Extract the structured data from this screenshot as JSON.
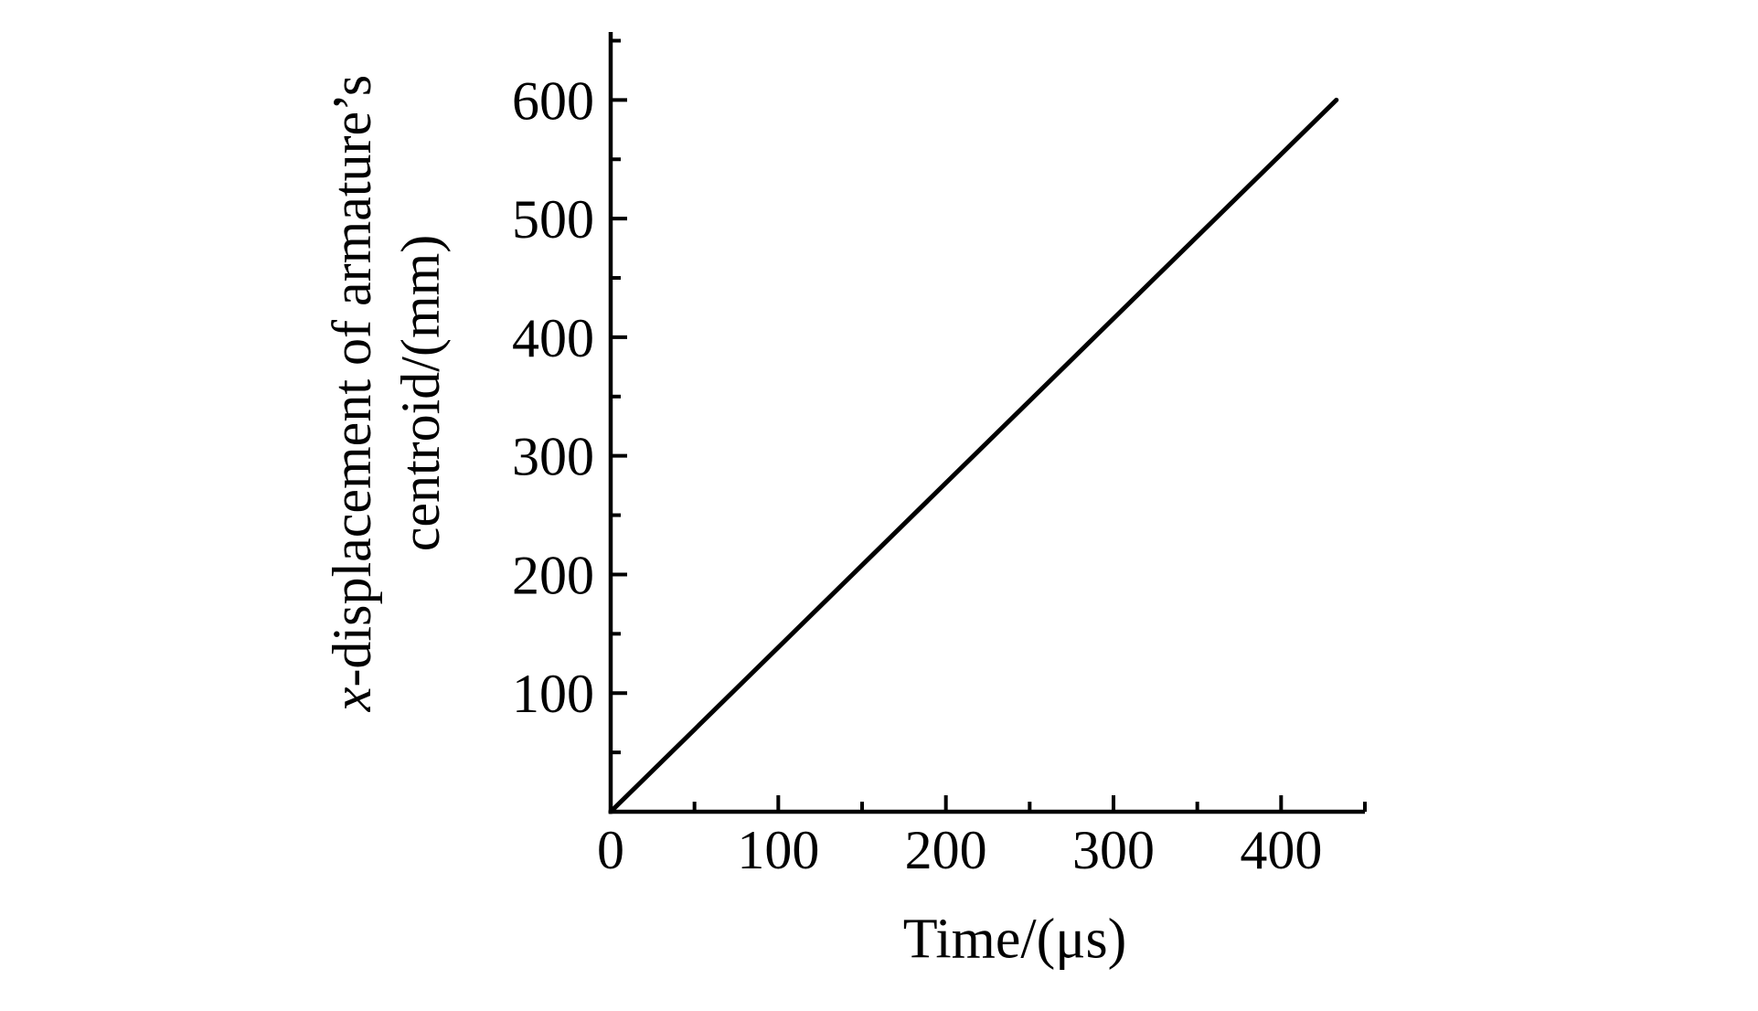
{
  "page": {
    "background": "#ffffff"
  },
  "chart_data": {
    "type": "line",
    "title": "",
    "xlabel": "Time/(μs)",
    "ylabel": {
      "italic_prefix": "x",
      "line1_rest": "-displacement of armature’s",
      "line2": "centroid/(mm)"
    },
    "xlim": [
      0,
      450
    ],
    "ylim": [
      0,
      655
    ],
    "x_major_ticks": [
      0,
      100,
      200,
      300,
      400
    ],
    "x_minor_ticks": [
      50,
      150,
      250,
      350,
      450
    ],
    "y_major_ticks": [
      100,
      200,
      300,
      400,
      500,
      600
    ],
    "y_minor_ticks": [
      50,
      150,
      250,
      350,
      450,
      550,
      650
    ],
    "grid": false,
    "legend": "none",
    "axis_color": "#000000",
    "line_color": "#000000",
    "series": [
      {
        "name": "x-displacement of armature's centroid",
        "shape": "straight",
        "points": [
          [
            0,
            0
          ],
          [
            433,
            600
          ]
        ]
      }
    ]
  }
}
